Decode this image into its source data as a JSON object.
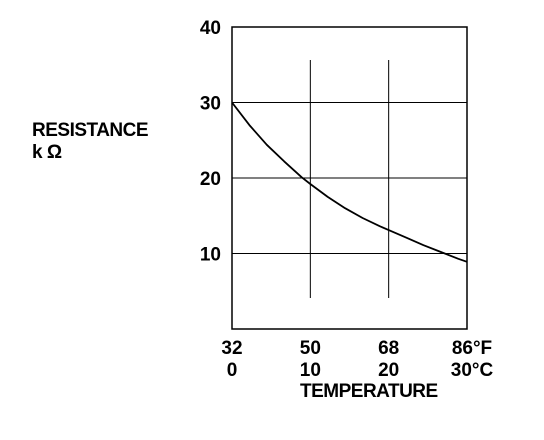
{
  "chart_data": {
    "type": "line",
    "xlabel": "TEMPERATURE",
    "ylabel": [
      "RESISTANCE",
      "k Ω"
    ],
    "x_unit_primary": "°F",
    "x_unit_secondary": "°C",
    "xlim": [
      32,
      86
    ],
    "ylim": [
      0,
      40
    ],
    "x_ticks": [
      {
        "value": 32,
        "label_f": "32",
        "label_c": "0"
      },
      {
        "value": 50,
        "label_f": "50",
        "label_c": "10"
      },
      {
        "value": 68,
        "label_f": "68",
        "label_c": "20"
      },
      {
        "value": 86,
        "label_f": "86°F",
        "label_c": "30°C"
      }
    ],
    "y_ticks": [
      {
        "value": 10,
        "label": "10"
      },
      {
        "value": 20,
        "label": "20"
      },
      {
        "value": 30,
        "label": "30"
      },
      {
        "value": 40,
        "label": "40"
      }
    ],
    "grid": true,
    "series": [
      {
        "x": [
          32,
          36,
          40,
          44,
          48,
          50,
          54,
          58,
          62,
          66,
          68,
          72,
          76,
          80,
          84,
          86
        ],
        "y": [
          30,
          27,
          24.4,
          22.2,
          20.1,
          19.2,
          17.5,
          16,
          14.7,
          13.6,
          13.1,
          12.1,
          11.1,
          10.2,
          9.3,
          8.9
        ]
      }
    ]
  }
}
